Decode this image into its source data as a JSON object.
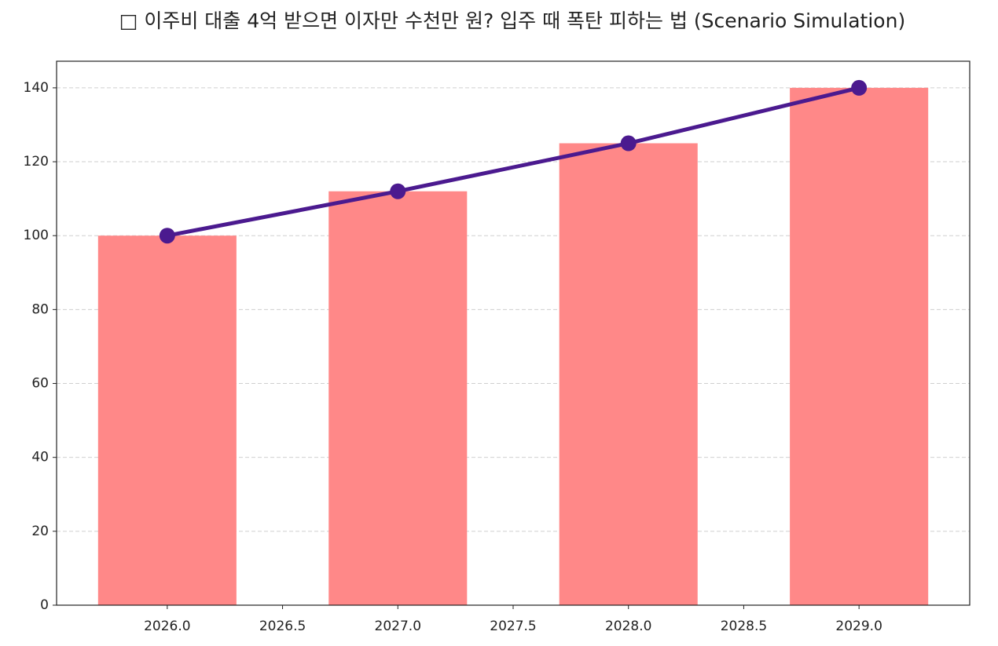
{
  "chart_data": {
    "type": "combo",
    "title": "□ 이주비 대출 4억 받으면 이자만 수천만 원? 입주 때 폭탄 피하는 법 (Scenario Simulation)",
    "x": [
      2026,
      2027,
      2028,
      2029
    ],
    "series": [
      {
        "type": "bar",
        "color": "#ff8888",
        "values": [
          100,
          112,
          125,
          140
        ]
      },
      {
        "type": "line",
        "color": "#4b1a8f",
        "values": [
          100,
          112,
          125,
          140
        ]
      }
    ],
    "bar_width": 0.6,
    "xlim": [
      2025.52,
      2029.48
    ],
    "xticks": [
      {
        "value": 2026,
        "label": "2026.0"
      },
      2026.5,
      {
        "value": 2027,
        "label": "2027.0"
      },
      2027.5,
      {
        "value": 2028,
        "label": "2028.0"
      },
      2028.5,
      {
        "value": 2029,
        "label": "2029.0"
      }
    ],
    "ylim": [
      0,
      147.2
    ],
    "yticks": [
      0,
      20,
      40,
      60,
      80,
      100,
      120,
      140
    ],
    "grid": "y"
  }
}
